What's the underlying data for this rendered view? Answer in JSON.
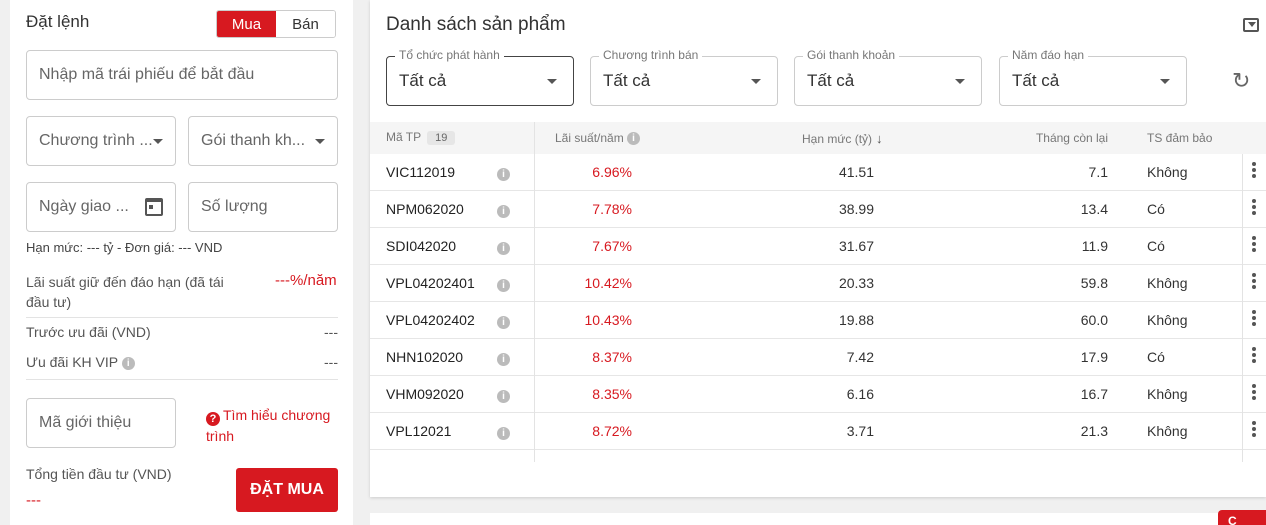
{
  "order": {
    "title": "Đặt lệnh",
    "buy_label": "Mua",
    "sell_label": "Bán",
    "bond_code_placeholder": "Nhập mã trái phiếu để bắt đầu",
    "program_placeholder": "Chương trình ...",
    "liquidity_placeholder": "Gói thanh kh...",
    "trade_date_placeholder": "Ngày giao ...",
    "quantity_placeholder": "Số lượng",
    "limit_price_text": "Hạn mức: --- tỷ - Đơn giá: --- VND",
    "rate_label": "Lãi suất giữ đến đáo hạn (đã tái đầu tư)",
    "rate_value": "---%/năm",
    "before_discount_label": "Trước ưu đãi (VND)",
    "before_discount_value": "---",
    "vip_discount_label": "Ưu đãi KH VIP",
    "vip_discount_value": "---",
    "referral_placeholder": "Mã giới thiệu",
    "learn_program": "Tìm hiểu chương trình",
    "total_label": "Tổng tiền đầu tư (VND)",
    "total_value": "---",
    "submit_label": "ĐẶT MUA"
  },
  "products": {
    "title": "Danh sách sản phẩm",
    "filters": [
      {
        "label": "Tổ chức phát hành",
        "value": "Tất cả"
      },
      {
        "label": "Chương trình bán",
        "value": "Tất cả"
      },
      {
        "label": "Gói thanh khoản",
        "value": "Tất cả"
      },
      {
        "label": "Năm đáo hạn",
        "value": "Tất cả"
      }
    ],
    "columns": {
      "code": "Mã TP",
      "count": "19",
      "rate": "Lãi suất/năm",
      "limit": "Hạn mức (tỷ)",
      "months": "Tháng còn lại",
      "collateral": "TS đảm bảo"
    },
    "rows": [
      {
        "code": "VIC112019",
        "rate": "6.96%",
        "limit": "41.51",
        "months": "7.1",
        "collateral": "Không"
      },
      {
        "code": "NPM062020",
        "rate": "7.78%",
        "limit": "38.99",
        "months": "13.4",
        "collateral": "Có"
      },
      {
        "code": "SDI042020",
        "rate": "7.67%",
        "limit": "31.67",
        "months": "11.9",
        "collateral": "Có"
      },
      {
        "code": "VPL04202401",
        "rate": "10.42%",
        "limit": "20.33",
        "months": "59.8",
        "collateral": "Không"
      },
      {
        "code": "VPL04202402",
        "rate": "10.43%",
        "limit": "19.88",
        "months": "60.0",
        "collateral": "Không"
      },
      {
        "code": "NHN102020",
        "rate": "8.37%",
        "limit": "7.42",
        "months": "17.9",
        "collateral": "Có"
      },
      {
        "code": "VHM092020",
        "rate": "8.35%",
        "limit": "6.16",
        "months": "16.7",
        "collateral": "Không"
      },
      {
        "code": "VPL12021",
        "rate": "8.72%",
        "limit": "3.71",
        "months": "21.3",
        "collateral": "Không"
      }
    ]
  },
  "fab": {
    "label": "C"
  }
}
